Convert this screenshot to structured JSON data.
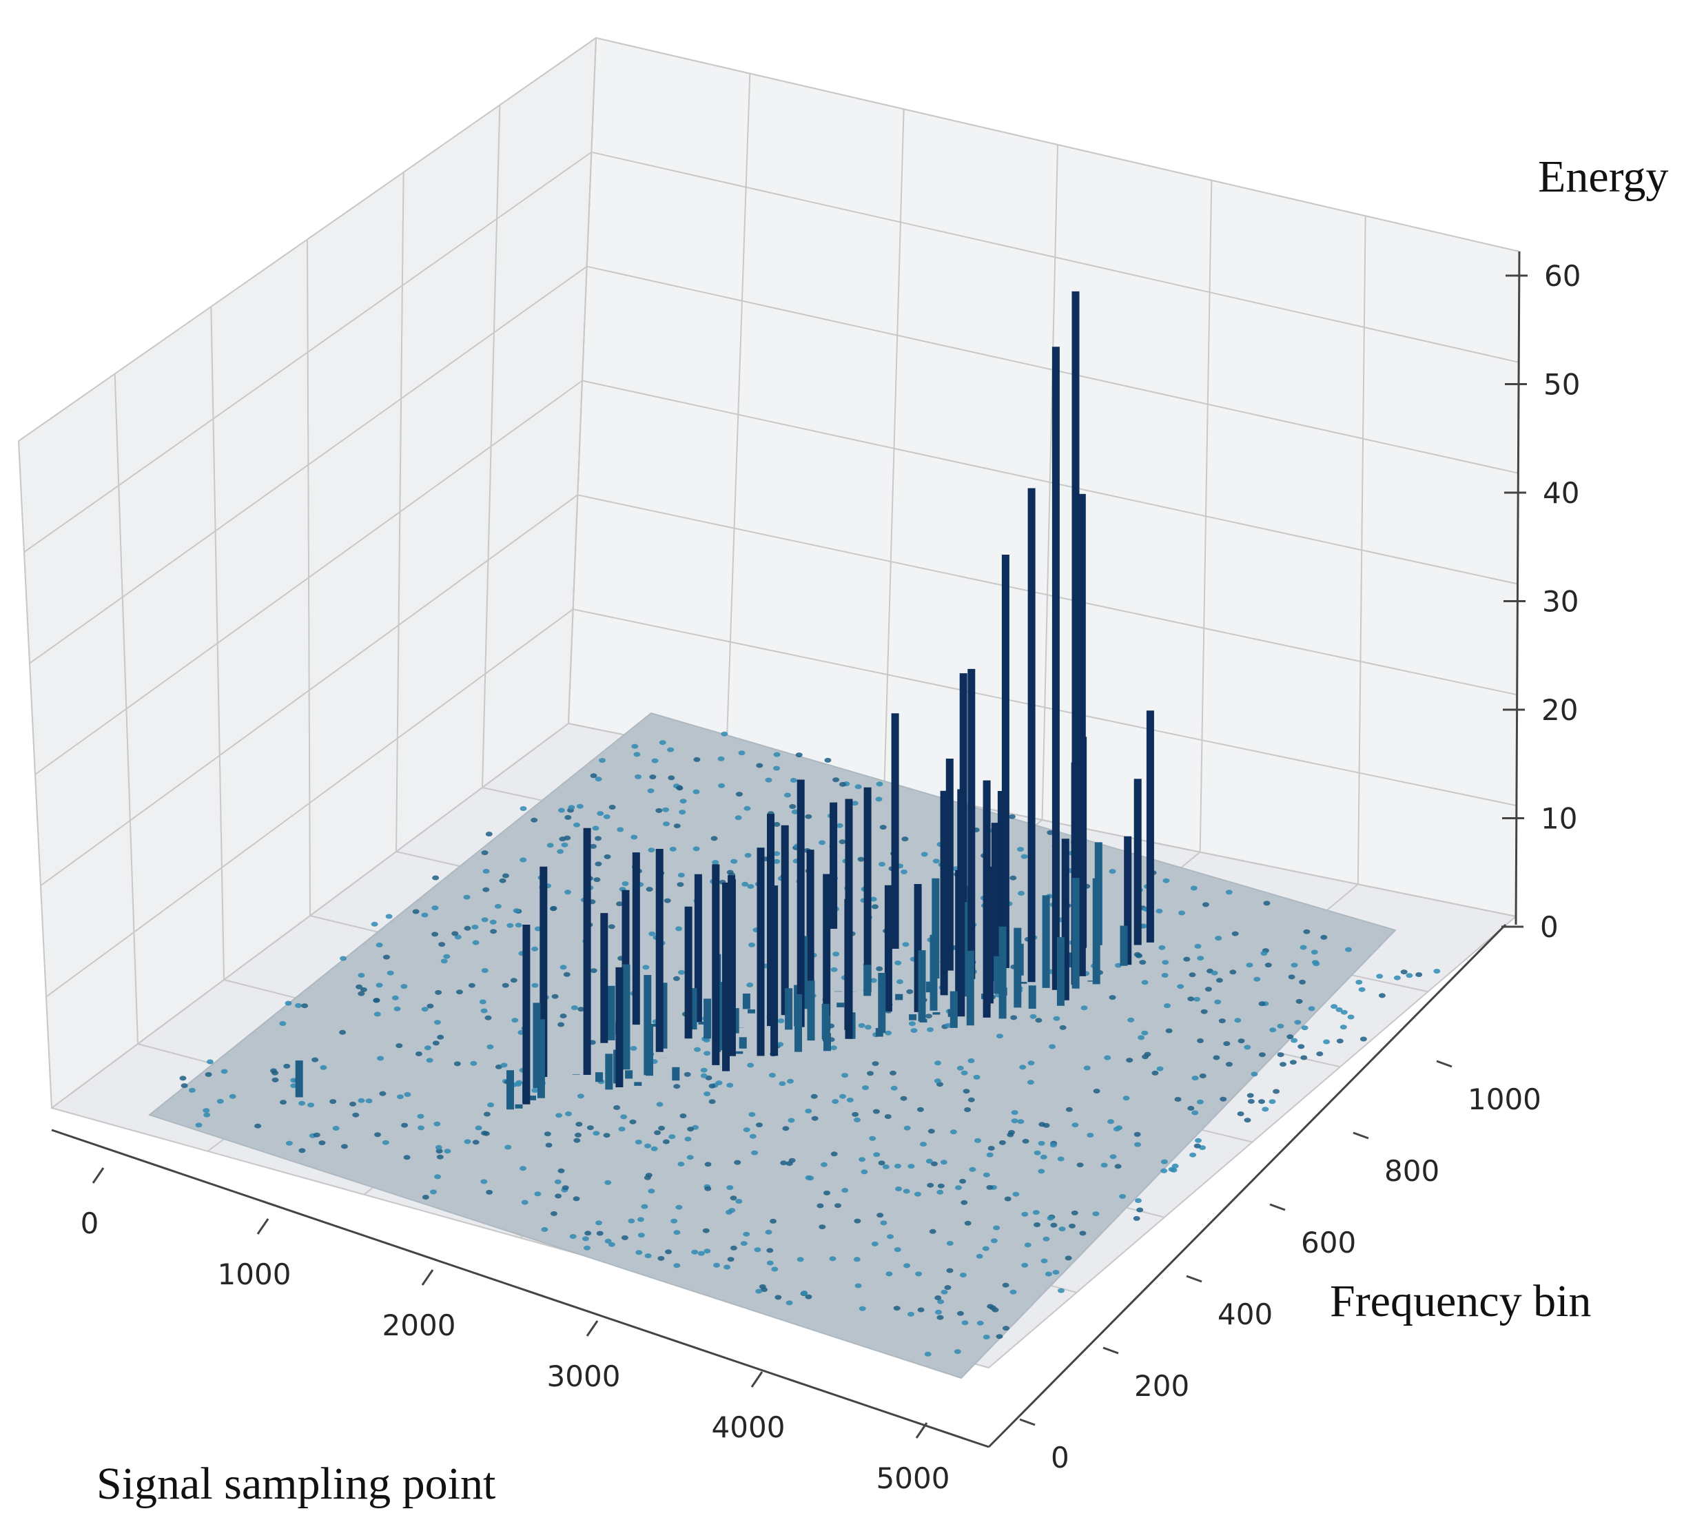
{
  "chart_data": {
    "type": "bar",
    "projection": "3d",
    "title": "",
    "xlabel": "Signal sampling point",
    "ylabel": "Frequency bin",
    "zlabel": "Energy",
    "xlim": [
      0,
      5000
    ],
    "ylim": [
      0,
      1024
    ],
    "zlim": [
      0,
      60
    ],
    "x_ticks": [
      "0",
      "1000",
      "2000",
      "3000",
      "4000",
      "5000"
    ],
    "y_ticks": [
      "0",
      "200",
      "400",
      "600",
      "800",
      "1000"
    ],
    "z_ticks": [
      "0",
      "10",
      "20",
      "30",
      "40",
      "50",
      "60"
    ],
    "grid": true,
    "colors": {
      "floor": "#b9c3cb",
      "low_energy": "#2f8bb3",
      "mid_energy": "#1f5f86",
      "high_energy": "#0d2d5a",
      "pane": "#f2f2f2",
      "grid": "#c8c8c8"
    },
    "dominant_peaks": [
      {
        "x": 3230,
        "y": 820,
        "z": 58.5
      },
      {
        "x": 3290,
        "y": 760,
        "z": 56.0
      },
      {
        "x": 3140,
        "y": 760,
        "z": 43.0
      },
      {
        "x": 3330,
        "y": 800,
        "z": 42.0
      },
      {
        "x": 2950,
        "y": 770,
        "z": 36.0
      },
      {
        "x": 2860,
        "y": 730,
        "z": 27.0
      },
      {
        "x": 2660,
        "y": 780,
        "z": 24.0
      },
      {
        "x": 1700,
        "y": 330,
        "z": 21.5
      },
      {
        "x": 2360,
        "y": 740,
        "z": 20.5
      },
      {
        "x": 1640,
        "y": 450,
        "z": 15.0
      },
      {
        "x": 2200,
        "y": 620,
        "z": 12.0
      },
      {
        "x": 1980,
        "y": 740,
        "z": 11.0
      },
      {
        "x": 560,
        "y": 120,
        "z": 3.2
      }
    ]
  }
}
